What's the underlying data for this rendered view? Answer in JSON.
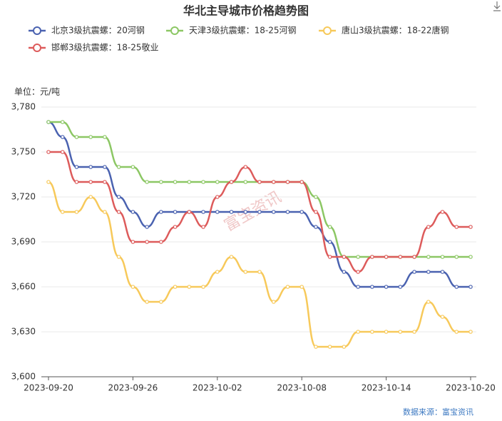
{
  "chart_data": {
    "type": "line",
    "title": "华北主导城市价格趋势图",
    "y_label": "单位：元/吨",
    "watermark": "富宝资讯",
    "source": "数据来源：富宝资讯",
    "x": [
      "2023-09-20",
      "2023-09-21",
      "2023-09-22",
      "2023-09-23",
      "2023-09-24",
      "2023-09-25",
      "2023-09-26",
      "2023-09-27",
      "2023-09-28",
      "2023-09-29",
      "2023-09-30",
      "2023-10-01",
      "2023-10-02",
      "2023-10-03",
      "2023-10-04",
      "2023-10-05",
      "2023-10-06",
      "2023-10-07",
      "2023-10-08",
      "2023-10-09",
      "2023-10-10",
      "2023-10-11",
      "2023-10-12",
      "2023-10-13",
      "2023-10-14",
      "2023-10-15",
      "2023-10-16",
      "2023-10-17",
      "2023-10-18",
      "2023-10-19",
      "2023-10-20"
    ],
    "xticks": [
      "2023-09-20",
      "2023-09-26",
      "2023-10-02",
      "2023-10-08",
      "2023-10-14",
      "2023-10-20"
    ],
    "ylim": [
      3600,
      3780
    ],
    "yticks": [
      {
        "value": 3600,
        "label": "3,600"
      },
      {
        "value": 3630,
        "label": "3,630"
      },
      {
        "value": 3660,
        "label": "3,660"
      },
      {
        "value": 3690,
        "label": "3,690"
      },
      {
        "value": 3720,
        "label": "3,720"
      },
      {
        "value": 3750,
        "label": "3,750"
      },
      {
        "value": 3780,
        "label": "3,780"
      }
    ],
    "grid": true,
    "series": [
      {
        "name": "北京3级抗震螺：20河钢",
        "color": "#4a62b0",
        "values": [
          3770,
          3760,
          3740,
          3740,
          3740,
          3720,
          3710,
          3700,
          3710,
          3710,
          3710,
          3710,
          3710,
          3710,
          3710,
          3710,
          3710,
          3710,
          3710,
          3700,
          3690,
          3670,
          3660,
          3660,
          3660,
          3660,
          3670,
          3670,
          3670,
          3660,
          3660
        ]
      },
      {
        "name": "天津3级抗震螺：18-25河钢",
        "color": "#8cc764",
        "values": [
          3770,
          3770,
          3760,
          3760,
          3760,
          3740,
          3740,
          3730,
          3730,
          3730,
          3730,
          3730,
          3730,
          3730,
          3730,
          3730,
          3730,
          3730,
          3730,
          3720,
          3700,
          3680,
          3680,
          3680,
          3680,
          3680,
          3680,
          3680,
          3680,
          3680,
          3680
        ]
      },
      {
        "name": "唐山3级抗震螺：18-22唐钢",
        "color": "#f7c95a",
        "values": [
          3730,
          3710,
          3710,
          3720,
          3710,
          3680,
          3660,
          3650,
          3650,
          3660,
          3660,
          3660,
          3670,
          3680,
          3670,
          3670,
          3650,
          3660,
          3660,
          3620,
          3620,
          3620,
          3630,
          3630,
          3630,
          3630,
          3630,
          3650,
          3640,
          3630,
          3630
        ]
      },
      {
        "name": "邯郸3级抗震螺：18-25敬业",
        "color": "#dd5b5b",
        "values": [
          3750,
          3750,
          3730,
          3730,
          3730,
          3710,
          3690,
          3690,
          3690,
          3700,
          3710,
          3700,
          3720,
          3730,
          3740,
          3730,
          3730,
          3730,
          3730,
          3710,
          3680,
          3680,
          3670,
          3680,
          3680,
          3680,
          3680,
          3700,
          3710,
          3700,
          3700
        ]
      }
    ]
  }
}
